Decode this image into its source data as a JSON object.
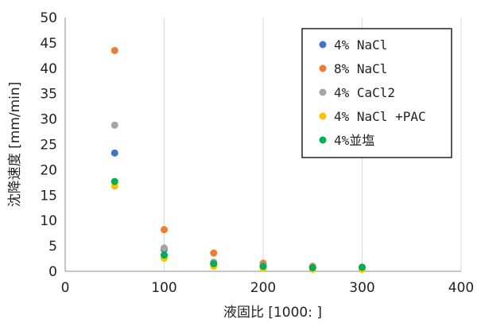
{
  "chart_data": {
    "type": "scatter",
    "xlabel": "液固比 [1000: ]",
    "ylabel": "沈降速度 [mm/min]",
    "xlim": [
      0,
      400
    ],
    "ylim": [
      0,
      50
    ],
    "x_ticks": [
      "0",
      "100",
      "200",
      "300",
      "400"
    ],
    "y_ticks": [
      "0",
      "5",
      "10",
      "15",
      "20",
      "25",
      "30",
      "35",
      "40",
      "45",
      "50"
    ],
    "grid": "vertical",
    "legend_position": "top-right",
    "series": [
      {
        "name": "4% NaCl",
        "color": "#4472C4",
        "x": [
          50,
          100,
          150,
          200,
          250,
          300
        ],
        "y": [
          23.3,
          4.3,
          1.4,
          1.0,
          0.7,
          0.7
        ]
      },
      {
        "name": "8% NaCl",
        "color": "#ED7D31",
        "x": [
          50,
          100,
          150,
          200,
          250,
          300
        ],
        "y": [
          43.5,
          8.2,
          3.6,
          1.6,
          1.0,
          0.8
        ]
      },
      {
        "name": "4% CaCl2",
        "color": "#A5A5A5",
        "x": [
          50,
          100,
          150,
          200,
          250,
          300
        ],
        "y": [
          28.8,
          4.6,
          1.8,
          1.2,
          0.8,
          0.7
        ]
      },
      {
        "name": "4% NaCl +PAC",
        "color": "#FFC000",
        "x": [
          50,
          100,
          150,
          200,
          250,
          300
        ],
        "y": [
          16.8,
          2.6,
          1.0,
          0.6,
          0.4,
          0.4
        ]
      },
      {
        "name": "4%並塩",
        "color": "#00B050",
        "x": [
          50,
          100,
          150,
          200,
          250,
          300
        ],
        "y": [
          17.7,
          3.2,
          1.5,
          1.0,
          0.7,
          0.8
        ]
      }
    ]
  }
}
